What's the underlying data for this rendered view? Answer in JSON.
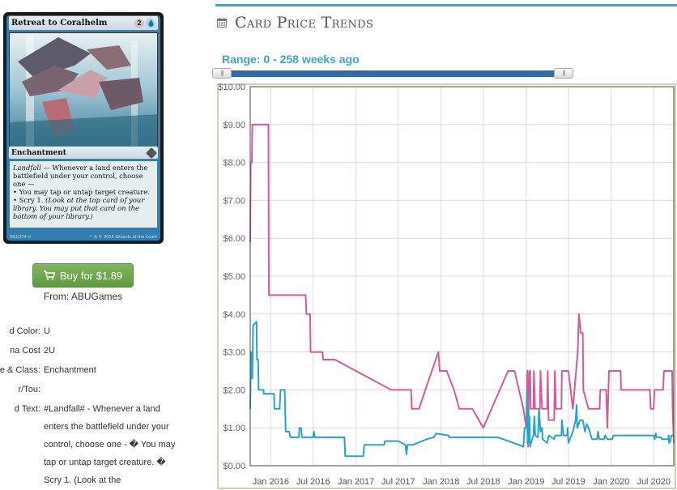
{
  "card": {
    "name": "Retreat to Coralhelm",
    "mana_generic": "2",
    "type_line": "Enchantment",
    "rules_text_lines": [
      {
        "text": "Landfall",
        "italic": true,
        "rest": " — Whenever a land enters the"
      },
      {
        "text": "battlefield under your control, choose",
        "italic": false,
        "rest": ""
      },
      {
        "text": "one —",
        "italic": false,
        "rest": ""
      },
      {
        "text": "• You may tap or untap target creature.",
        "italic": false,
        "rest": ""
      },
      {
        "text": "• Scry 1. ",
        "italic": false,
        "rest": "(Look at the top card of your"
      },
      {
        "text": "library. You may put that card on the",
        "italic": true,
        "rest": ""
      },
      {
        "text": "bottom of your library.)",
        "italic": true,
        "rest": ""
      }
    ],
    "collector": "082/274 U",
    "copyright": "™ & © 2015 Wizards of the Coast",
    "colors": {
      "frame": "#2f7fb3"
    }
  },
  "buy": {
    "label": "Buy for $1.89",
    "from": "From: ABUGames"
  },
  "details": [
    {
      "label": "d Color:",
      "value": "U"
    },
    {
      "label": "na Cost",
      "value": "2U"
    },
    {
      "label": "e & Class:",
      "value": "Enchantment"
    },
    {
      "label": "r/Tou:",
      "value": ""
    },
    {
      "label": "d Text:",
      "value": "#Landfall# - Whenever a land enters the battlefield under your control, choose one - � You may tap or untap target creature. � Scry 1. (Look at the"
    }
  ],
  "trends": {
    "title": "Card Price Trends",
    "range_label": "Range: 0 - 258 weeks ago",
    "accent": "#3aa8c4"
  },
  "chart_data": {
    "type": "line",
    "ylim": [
      0,
      10
    ],
    "xlim": [
      "2015-10-05",
      "2020-09-25"
    ],
    "y_ticks": [
      "$0.00",
      "$1.00",
      "$2.00",
      "$3.00",
      "$4.00",
      "$5.00",
      "$6.00",
      "$7.00",
      "$8.00",
      "$9.00",
      "$10.00"
    ],
    "x_ticks": [
      {
        "label": "Jan 2016",
        "date": "2016-01-01"
      },
      {
        "label": "Jul 2016",
        "date": "2016-07-01"
      },
      {
        "label": "Jan 2017",
        "date": "2017-01-01"
      },
      {
        "label": "Jul 2017",
        "date": "2017-07-01"
      },
      {
        "label": "Jan 2018",
        "date": "2018-01-01"
      },
      {
        "label": "Jul 2018",
        "date": "2018-07-01"
      },
      {
        "label": "Jan 2019",
        "date": "2019-01-01"
      },
      {
        "label": "Jul 2019",
        "date": "2019-07-01"
      },
      {
        "label": "Jan 2020",
        "date": "2020-01-01"
      },
      {
        "label": "Jul 2020",
        "date": "2020-07-01"
      }
    ],
    "series": [
      {
        "color": "#d45b9a",
        "points": [
          [
            "2015-10-05",
            5.9
          ],
          [
            "2015-10-07",
            8.0
          ],
          [
            "2015-10-12",
            8.0
          ],
          [
            "2015-10-14",
            9.0
          ],
          [
            "2015-12-22",
            9.0
          ],
          [
            "2015-12-24",
            4.5
          ],
          [
            "2016-05-30",
            4.5
          ],
          [
            "2016-06-02",
            4.0
          ],
          [
            "2016-06-18",
            4.0
          ],
          [
            "2016-06-20",
            3.0
          ],
          [
            "2016-08-10",
            3.0
          ],
          [
            "2016-08-13",
            2.8
          ],
          [
            "2016-10-02",
            2.8
          ],
          [
            "2017-06-01",
            2.0
          ],
          [
            "2017-08-25",
            2.0
          ],
          [
            "2017-08-28",
            1.5
          ],
          [
            "2017-09-28",
            1.5
          ],
          [
            "2017-10-25",
            2.0
          ],
          [
            "2017-12-20",
            3.0
          ],
          [
            "2017-12-26",
            2.5
          ],
          [
            "2018-01-25",
            2.5
          ],
          [
            "2018-02-25",
            2.0
          ],
          [
            "2018-03-20",
            1.5
          ],
          [
            "2018-05-15",
            1.5
          ],
          [
            "2018-07-01",
            1.0
          ],
          [
            "2018-10-15",
            2.5
          ],
          [
            "2018-11-12",
            2.5
          ],
          [
            "2018-12-20",
            1.5
          ],
          [
            "2019-01-01",
            1.0
          ],
          [
            "2019-01-06",
            2.5
          ],
          [
            "2019-01-09",
            0.5
          ],
          [
            "2019-01-14",
            2.5
          ],
          [
            "2019-01-18",
            2.5
          ],
          [
            "2019-01-20",
            1.5
          ],
          [
            "2019-02-01",
            1.5
          ],
          [
            "2019-02-03",
            2.5
          ],
          [
            "2019-02-08",
            1.5
          ],
          [
            "2019-03-01",
            1.5
          ],
          [
            "2019-03-03",
            2.5
          ],
          [
            "2019-03-10",
            1.5
          ],
          [
            "2019-04-01",
            1.5
          ],
          [
            "2019-04-03",
            2.5
          ],
          [
            "2019-04-07",
            1.2
          ],
          [
            "2019-05-01",
            1.2
          ],
          [
            "2019-05-04",
            2.5
          ],
          [
            "2019-05-08",
            1.5
          ],
          [
            "2019-06-01",
            1.5
          ],
          [
            "2019-06-03",
            2.5
          ],
          [
            "2019-07-01",
            2.5
          ],
          [
            "2019-07-20",
            1.5
          ],
          [
            "2019-08-10",
            3.0
          ],
          [
            "2019-08-15",
            4.0
          ],
          [
            "2019-08-23",
            3.5
          ],
          [
            "2019-09-01",
            3.5
          ],
          [
            "2019-09-03",
            2.0
          ],
          [
            "2019-09-25",
            1.5
          ],
          [
            "2019-11-12",
            1.5
          ],
          [
            "2019-11-15",
            2.0
          ],
          [
            "2019-12-10",
            2.0
          ],
          [
            "2019-12-15",
            1.0
          ],
          [
            "2019-12-22",
            2.5
          ],
          [
            "2020-02-10",
            2.5
          ],
          [
            "2020-02-12",
            2.0
          ],
          [
            "2020-06-15",
            2.0
          ],
          [
            "2020-06-18",
            1.5
          ],
          [
            "2020-07-01",
            1.5
          ],
          [
            "2020-07-04",
            2.0
          ],
          [
            "2020-08-10",
            2.0
          ],
          [
            "2020-08-14",
            2.5
          ],
          [
            "2020-09-18",
            2.5
          ],
          [
            "2020-09-20",
            1.5
          ],
          [
            "2020-09-25",
            0.6
          ]
        ]
      },
      {
        "color": "#2aa5c0",
        "points": [
          [
            "2015-10-05",
            1.5
          ],
          [
            "2015-10-08",
            3.0
          ],
          [
            "2015-10-10",
            2.5
          ],
          [
            "2015-10-12",
            3.0
          ],
          [
            "2015-10-14",
            2.3
          ],
          [
            "2015-10-17",
            3.7
          ],
          [
            "2015-11-01",
            3.8
          ],
          [
            "2015-11-03",
            2.8
          ],
          [
            "2015-11-08",
            2.8
          ],
          [
            "2015-11-10",
            2.0
          ],
          [
            "2015-12-01",
            2.0
          ],
          [
            "2015-12-02",
            1.9
          ],
          [
            "2016-01-15",
            1.9
          ],
          [
            "2016-01-17",
            1.5
          ],
          [
            "2016-02-08",
            1.5
          ],
          [
            "2016-02-12",
            2.0
          ],
          [
            "2016-03-01",
            2.0
          ],
          [
            "2016-03-05",
            0.9
          ],
          [
            "2016-03-20",
            0.9
          ],
          [
            "2016-03-25",
            0.75
          ],
          [
            "2016-05-01",
            0.75
          ],
          [
            "2016-05-03",
            1.0
          ],
          [
            "2016-05-10",
            1.0
          ],
          [
            "2016-05-14",
            0.75
          ],
          [
            "2016-07-01",
            0.75
          ],
          [
            "2016-07-04",
            0.9
          ],
          [
            "2016-07-08",
            0.75
          ],
          [
            "2016-11-12",
            0.75
          ],
          [
            "2016-11-16",
            0.25
          ],
          [
            "2017-02-01",
            0.25
          ],
          [
            "2017-02-05",
            0.55
          ],
          [
            "2017-05-01",
            0.55
          ],
          [
            "2017-05-05",
            0.65
          ],
          [
            "2017-07-01",
            0.65
          ],
          [
            "2017-08-01",
            0.55
          ],
          [
            "2017-08-05",
            0.3
          ],
          [
            "2017-08-10",
            0.55
          ],
          [
            "2017-09-01",
            0.55
          ],
          [
            "2017-11-01",
            0.7
          ],
          [
            "2017-12-01",
            0.75
          ],
          [
            "2017-12-10",
            0.85
          ],
          [
            "2018-02-01",
            0.8
          ],
          [
            "2018-02-05",
            0.75
          ],
          [
            "2018-09-01",
            0.75
          ],
          [
            "2018-12-01",
            0.55
          ],
          [
            "2018-12-20",
            0.5
          ],
          [
            "2018-12-25",
            1.0
          ],
          [
            "2019-01-01",
            1.0
          ],
          [
            "2019-01-03",
            1.5
          ],
          [
            "2019-01-05",
            2.0
          ],
          [
            "2019-01-07",
            0.6
          ],
          [
            "2019-01-10",
            1.5
          ],
          [
            "2019-01-12",
            0.6
          ],
          [
            "2019-01-15",
            1.3
          ],
          [
            "2019-01-18",
            0.5
          ],
          [
            "2019-01-22",
            0.6
          ],
          [
            "2019-02-01",
            0.8
          ],
          [
            "2019-02-05",
            1.3
          ],
          [
            "2019-02-09",
            0.8
          ],
          [
            "2019-02-20",
            0.75
          ],
          [
            "2019-02-25",
            1.5
          ],
          [
            "2019-03-03",
            0.9
          ],
          [
            "2019-03-10",
            1.0
          ],
          [
            "2019-03-12",
            0.7
          ],
          [
            "2019-04-01",
            0.6
          ],
          [
            "2019-04-08",
            0.8
          ],
          [
            "2019-05-01",
            0.7
          ],
          [
            "2019-05-05",
            0.8
          ],
          [
            "2019-06-01",
            0.8
          ],
          [
            "2019-06-03",
            1.2
          ],
          [
            "2019-06-10",
            0.8
          ],
          [
            "2019-06-25",
            0.8
          ],
          [
            "2019-06-28",
            1.0
          ],
          [
            "2019-07-01",
            0.6
          ],
          [
            "2019-07-20",
            0.9
          ],
          [
            "2019-08-01",
            1.2
          ],
          [
            "2019-08-05",
            1.6
          ],
          [
            "2019-08-08",
            1.0
          ],
          [
            "2019-08-20",
            1.2
          ],
          [
            "2019-09-01",
            1.2
          ],
          [
            "2019-09-10",
            0.9
          ],
          [
            "2019-09-18",
            1.1
          ],
          [
            "2019-09-25",
            1.0
          ],
          [
            "2019-10-10",
            0.7
          ],
          [
            "2019-11-01",
            0.7
          ],
          [
            "2019-11-05",
            0.9
          ],
          [
            "2019-11-10",
            0.7
          ],
          [
            "2019-12-01",
            0.7
          ],
          [
            "2019-12-05",
            0.8
          ],
          [
            "2019-12-15",
            0.7
          ],
          [
            "2020-01-05",
            0.7
          ],
          [
            "2020-01-10",
            0.8
          ],
          [
            "2020-07-01",
            0.8
          ],
          [
            "2020-07-05",
            0.7
          ],
          [
            "2020-07-10",
            0.85
          ],
          [
            "2020-07-14",
            0.75
          ],
          [
            "2020-08-01",
            0.75
          ],
          [
            "2020-08-05",
            0.7
          ],
          [
            "2020-09-01",
            0.7
          ],
          [
            "2020-09-03",
            0.8
          ],
          [
            "2020-09-05",
            0.6
          ],
          [
            "2020-09-10",
            0.65
          ],
          [
            "2020-09-15",
            0.8
          ],
          [
            "2020-09-25",
            0.8
          ]
        ]
      }
    ]
  }
}
